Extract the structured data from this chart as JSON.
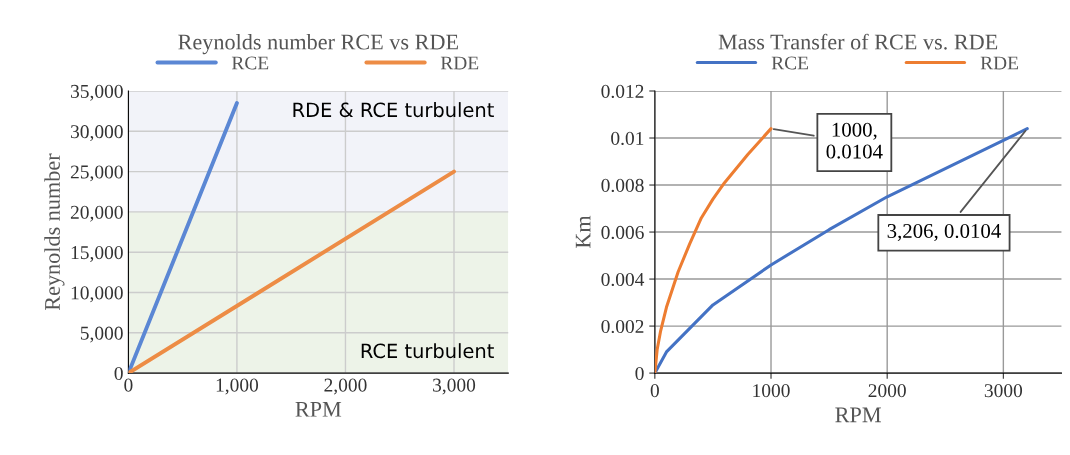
{
  "chart_data": [
    {
      "type": "line",
      "title": "Reynolds number RCE vs RDE",
      "xlabel": "RPM",
      "ylabel": "Reynolds number",
      "series": [
        {
          "name": "RCE",
          "color": "#5b87d4",
          "x": [
            0,
            1000
          ],
          "values": [
            0,
            33500
          ]
        },
        {
          "name": "RDE",
          "color": "#ed8c45",
          "x": [
            0,
            3000
          ],
          "values": [
            0,
            25000
          ]
        }
      ],
      "xlim": [
        0,
        3500
      ],
      "xticks": [
        0,
        {
          "value": 1000,
          "label": "1,000"
        },
        {
          "value": 2000,
          "label": "2,000"
        },
        {
          "value": 3000,
          "label": "3,000"
        }
      ],
      "ylim": [
        0,
        35000
      ],
      "yticks": [
        0,
        {
          "value": 5000,
          "label": "5,000"
        },
        {
          "value": 10000,
          "label": "10,000"
        },
        {
          "value": 15000,
          "label": "15,000"
        },
        {
          "value": 20000,
          "label": "20,000"
        },
        {
          "value": 25000,
          "label": "25,000"
        },
        {
          "value": 30000,
          "label": "30,000"
        },
        {
          "value": 35000,
          "label": "35,000"
        }
      ],
      "bands": [
        {
          "axis": "y",
          "from": 0,
          "to": 20000,
          "label": "RCE turbulent",
          "color": "#edf3e8"
        },
        {
          "axis": "y",
          "from": 20000,
          "to": 35000,
          "label": "RDE & RCE turbulent",
          "color": "#f2f3f9"
        }
      ],
      "grid": true,
      "legend": "top"
    },
    {
      "type": "line",
      "title": "Mass Transfer of RCE vs. RDE",
      "xlabel": "RPM",
      "ylabel": "Km",
      "series": [
        {
          "name": "RCE",
          "color": "#4472c4",
          "x": [
            0,
            100,
            300,
            500,
            1000,
            1500,
            2000,
            2500,
            3000,
            3206
          ],
          "values": [
            0,
            0.0009,
            0.0019,
            0.0029,
            0.0046,
            0.0061,
            0.0075,
            0.0087,
            0.0099,
            0.0104
          ]
        },
        {
          "name": "RDE",
          "color": "#ed7d31",
          "x": [
            0,
            20,
            50,
            100,
            200,
            300,
            400,
            500,
            600,
            800,
            1000
          ],
          "values": [
            0,
            0.001,
            0.0018,
            0.0028,
            0.0043,
            0.0055,
            0.0066,
            0.0074,
            0.0081,
            0.0093,
            0.0104
          ]
        }
      ],
      "xlim": [
        0,
        3500
      ],
      "xticks": [
        0,
        1000,
        2000,
        3000
      ],
      "ylim": [
        0,
        0.012
      ],
      "yticks": [
        0,
        0.002,
        0.004,
        0.006,
        0.008,
        0.01,
        0.012
      ],
      "annotations": [
        {
          "text": "1000,\n0.0104",
          "x": 1000,
          "y": 0.0104
        },
        {
          "text": "3,206, 0.0104",
          "x": 3206,
          "y": 0.0104
        }
      ],
      "grid": true,
      "legend": "top"
    }
  ]
}
